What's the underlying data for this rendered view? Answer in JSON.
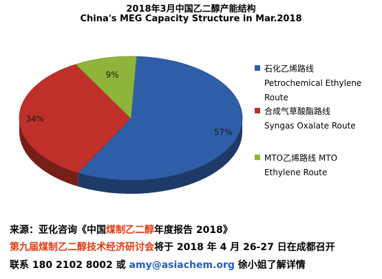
{
  "title_cn": "2018年3月中国乙二醇产能结构",
  "title_en": "China's MEG Capacity Structure in Mar.2018",
  "chart_data": {
    "type": "pie",
    "title": "2018年3月中国乙二醇产能结构 / China's MEG Capacity Structure in Mar.2018",
    "legend_position": "right",
    "slices": [
      {
        "label_cn": "石化乙烯路线",
        "label_en": "Petrochemical Ethylene Route",
        "value": 57,
        "label": "57%",
        "color": "#2f5ea8"
      },
      {
        "label_cn": "合成气草酸酯路线",
        "label_en": "Syngas Oxalate Route",
        "value": 34,
        "label": "34%",
        "color": "#c0302a"
      },
      {
        "label_cn": "MTO乙烯路线 MTO",
        "label_en": "Ethylene Route",
        "value": 9,
        "label": "9%",
        "color": "#8fb43a"
      }
    ]
  },
  "legend": [
    {
      "line1": "石化乙烯路线",
      "line2": "Petrochemical Ethylene",
      "line3": "Route",
      "color": "#2f5ea8"
    },
    {
      "line1": "合成气草酸酯路线",
      "line2": "Syngas Oxalate Route",
      "color": "#c0302a"
    },
    {
      "line1": "MTO乙烯路线 MTO",
      "line2": "Ethylene Route",
      "color": "#8fb43a"
    }
  ],
  "footer": {
    "line1_a": "来源：亚化咨询《中国",
    "line1_b": "煤制乙二醇",
    "line1_c": "年度报告 2018》",
    "line2_a": "第九届煤制乙二醇技术经济研讨会",
    "line2_b": "将于 2018 年 4 月 26-27 日在成都召开",
    "line3_a": "联系 180 2102 8002 或 ",
    "line3_b": "amy@asiachem.org",
    "line3_c": " 徐小姐了解详情"
  },
  "colors": {
    "highlight_red": "#e23a12",
    "email_blue": "#1f5fbf"
  }
}
